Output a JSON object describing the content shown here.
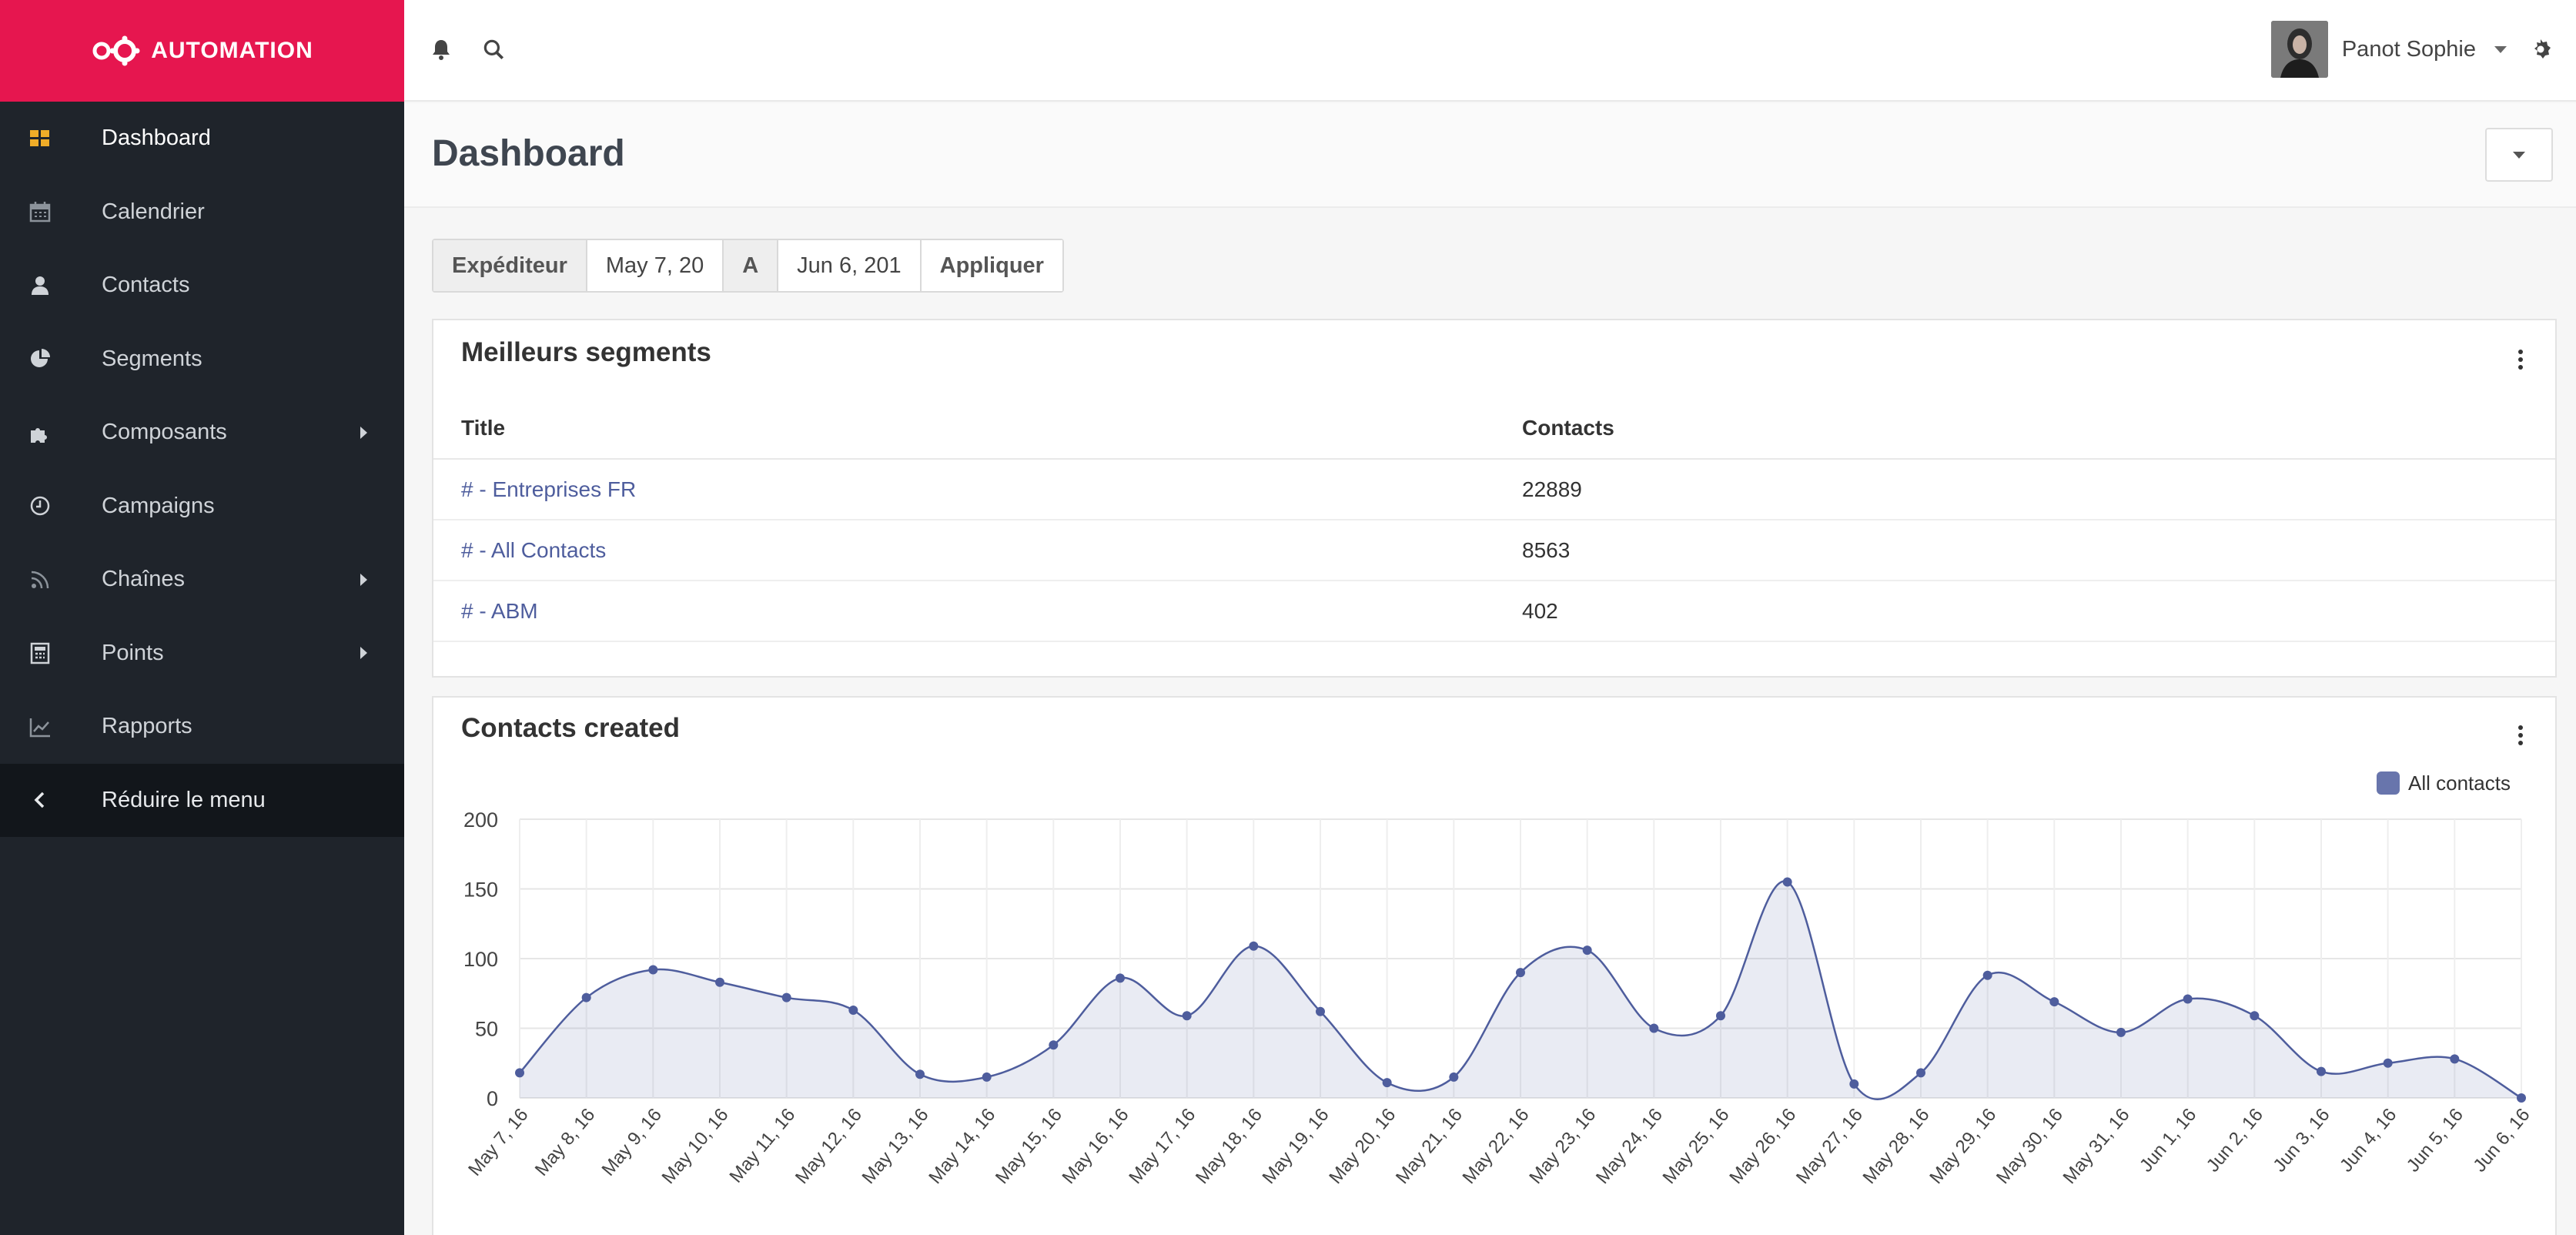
{
  "brand": {
    "name": "AUTOMATION"
  },
  "colors": {
    "brand": "#e6164f",
    "sidebar": "#1f242b",
    "accent": "#f0ad28",
    "series": "#4e5d9d"
  },
  "sidebar": {
    "items": [
      {
        "label": "Dashboard",
        "icon": "dashboard-icon",
        "active": true
      },
      {
        "label": "Calendrier",
        "icon": "calendar-icon"
      },
      {
        "label": "Contacts",
        "icon": "user-icon"
      },
      {
        "label": "Segments",
        "icon": "pie-chart-icon"
      },
      {
        "label": "Composants",
        "icon": "puzzle-icon",
        "submenu": true
      },
      {
        "label": "Campaigns",
        "icon": "clock-icon"
      },
      {
        "label": "Chaînes",
        "icon": "rss-icon",
        "submenu": true
      },
      {
        "label": "Points",
        "icon": "calculator-icon",
        "submenu": true
      },
      {
        "label": "Rapports",
        "icon": "line-chart-icon"
      }
    ],
    "collapse_label": "Réduire le menu"
  },
  "topbar": {
    "user_name": "Panot Sophie"
  },
  "page": {
    "title": "Dashboard"
  },
  "filter": {
    "from_label": "Expéditeur",
    "from_value": "May 7, 20",
    "to_label": "A",
    "to_value": "Jun 6, 201",
    "apply_label": "Appliquer"
  },
  "segments": {
    "title": "Meilleurs segments",
    "columns": [
      "Title",
      "Contacts"
    ],
    "rows": [
      {
        "title": "# - Entreprises FR",
        "contacts": "22889"
      },
      {
        "title": "# - All Contacts",
        "contacts": "8563"
      },
      {
        "title": "# - ABM",
        "contacts": "402"
      }
    ]
  },
  "chart_data": {
    "type": "area",
    "title": "Contacts created",
    "legend": "All contacts",
    "legend_position": "top-right",
    "ylim": [
      0,
      200
    ],
    "yticks": [
      0,
      50,
      100,
      150,
      200
    ],
    "categories": [
      "May 7, 16",
      "May 8, 16",
      "May 9, 16",
      "May 10, 16",
      "May 11, 16",
      "May 12, 16",
      "May 13, 16",
      "May 14, 16",
      "May 15, 16",
      "May 16, 16",
      "May 17, 16",
      "May 18, 16",
      "May 19, 16",
      "May 20, 16",
      "May 21, 16",
      "May 22, 16",
      "May 23, 16",
      "May 24, 16",
      "May 25, 16",
      "May 26, 16",
      "May 27, 16",
      "May 28, 16",
      "May 29, 16",
      "May 30, 16",
      "May 31, 16",
      "Jun 1, 16",
      "Jun 2, 16",
      "Jun 3, 16",
      "Jun 4, 16",
      "Jun 5, 16",
      "Jun 6, 16"
    ],
    "series": [
      {
        "name": "All contacts",
        "values": [
          18,
          72,
          92,
          83,
          72,
          63,
          17,
          15,
          38,
          86,
          59,
          109,
          62,
          11,
          15,
          90,
          106,
          50,
          59,
          155,
          10,
          18,
          88,
          69,
          47,
          71,
          59,
          19,
          25,
          28,
          0
        ]
      }
    ],
    "grid": true
  }
}
